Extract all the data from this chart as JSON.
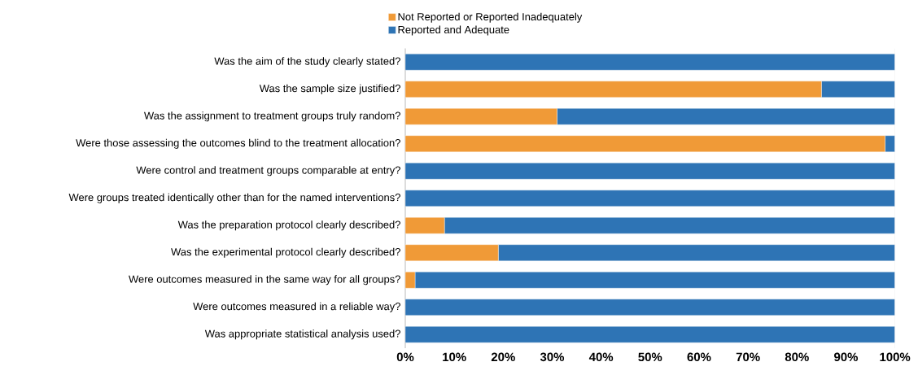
{
  "chart_data": {
    "type": "bar",
    "orientation": "horizontal",
    "stacked": true,
    "categories": [
      "Was the aim of the study clearly stated?",
      "Was the sample size justified?",
      "Was the assignment to treatment groups truly random?",
      "Were those assessing the outcomes blind to the treatment allocation?",
      "Were control and treatment groups comparable at entry?",
      "Were groups treated identically other than for the named interventions?",
      "Was the preparation protocol clearly described?",
      "Was the experimental protocol clearly described?",
      "Were outcomes measured in the same way for all groups?",
      "Were outcomes measured in a reliable way?",
      "Was appropriate statistical analysis used?"
    ],
    "series": [
      {
        "name": "Not Reported or Reported Inadequately",
        "color": "#f09a37",
        "values": [
          0,
          85,
          31,
          98,
          0,
          0,
          8,
          19,
          2,
          0,
          0
        ]
      },
      {
        "name": "Reported and Adequate",
        "color": "#2e74b5",
        "values": [
          100,
          15,
          69,
          2,
          100,
          100,
          92,
          81,
          98,
          100,
          100
        ]
      }
    ],
    "xlim": [
      0,
      100
    ],
    "xticks": [
      {
        "value": 0,
        "label": "0%"
      },
      {
        "value": 10,
        "label": "10%"
      },
      {
        "value": 20,
        "label": "20%"
      },
      {
        "value": 30,
        "label": "30%"
      },
      {
        "value": 40,
        "label": "40%"
      },
      {
        "value": 50,
        "label": "50%"
      },
      {
        "value": 60,
        "label": "60%"
      },
      {
        "value": 70,
        "label": "70%"
      },
      {
        "value": 80,
        "label": "80%"
      },
      {
        "value": 90,
        "label": "90%"
      },
      {
        "value": 100,
        "label": "100%"
      }
    ],
    "legend": "top"
  }
}
